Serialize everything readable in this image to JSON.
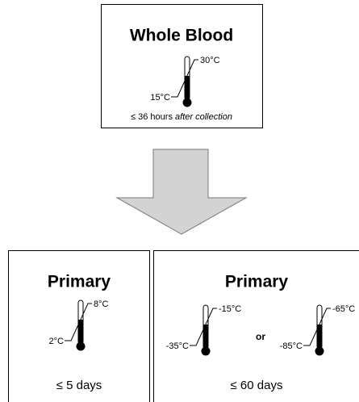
{
  "top": {
    "title": "Whole Blood",
    "thermometer": {
      "high": "30°C",
      "low": "15°C"
    },
    "duration": "≤ 36 hours",
    "duration_note": "after collection"
  },
  "bottom": [
    {
      "title": "Primary",
      "thermometers": [
        {
          "high": "8°C",
          "low": "2°C"
        }
      ],
      "duration": "≤ 5 days"
    },
    {
      "title": "Primary",
      "thermometers": [
        {
          "high": "-15°C",
          "low": "-35°C"
        },
        {
          "high": "-65°C",
          "low": "-85°C"
        }
      ],
      "separator": "or",
      "duration": "≤ 60 days"
    }
  ]
}
